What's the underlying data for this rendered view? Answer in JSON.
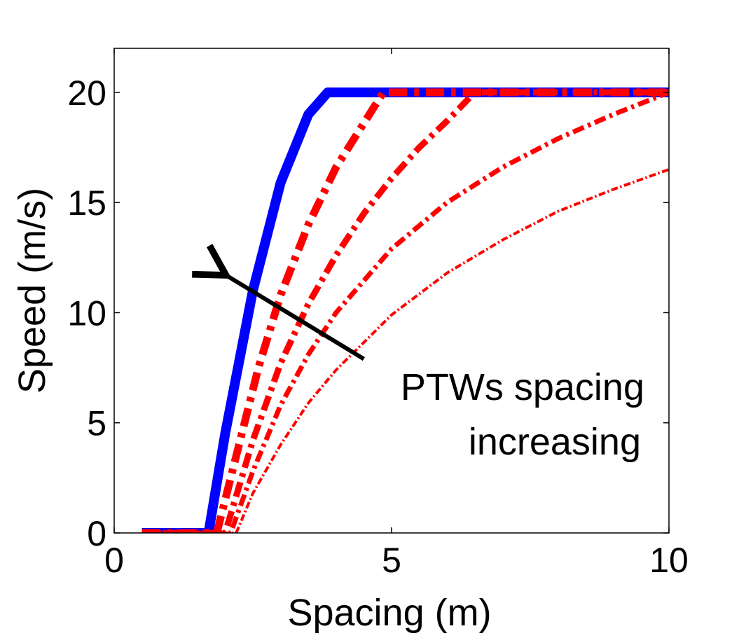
{
  "chart_data": {
    "type": "line",
    "title": "",
    "xlabel": "Spacing (m)",
    "ylabel": "Speed (m/s)",
    "xlim": [
      0,
      10
    ],
    "ylim": [
      0,
      22
    ],
    "xticks": [
      0,
      5,
      10
    ],
    "yticks": [
      0,
      5,
      10,
      15,
      20
    ],
    "grid": false,
    "colors": {
      "blue": "#0000ff",
      "red": "#ff0000",
      "axis": "#000000"
    },
    "series": [
      {
        "name": "blue-reference",
        "color": "#0000ff",
        "style": "solid",
        "x": [
          0.5,
          1.7,
          2.0,
          2.5,
          3.0,
          3.5,
          3.85,
          10.0
        ],
        "y": [
          0,
          0,
          4.5,
          11.0,
          15.9,
          19.0,
          20.0,
          20.0
        ]
      },
      {
        "name": "red-1",
        "color": "#ff0000",
        "style": "dashdot",
        "x": [
          0.5,
          1.85,
          2.2,
          2.6,
          3.0,
          3.5,
          4.0,
          4.5,
          4.85,
          10.0
        ],
        "y": [
          0,
          0,
          3.5,
          7.5,
          10.8,
          14.0,
          16.6,
          18.6,
          20.0,
          20.0
        ]
      },
      {
        "name": "red-2",
        "color": "#ff0000",
        "style": "dashdot",
        "x": [
          0.5,
          2.0,
          2.5,
          3.0,
          3.5,
          4.0,
          4.5,
          5.0,
          5.5,
          6.0,
          6.5,
          10.0
        ],
        "y": [
          0,
          0,
          4.2,
          7.7,
          10.4,
          12.6,
          14.5,
          16.1,
          17.5,
          18.7,
          20.0,
          20.0
        ]
      },
      {
        "name": "red-3",
        "color": "#ff0000",
        "style": "dashdot",
        "x": [
          0.5,
          2.1,
          2.5,
          3.0,
          3.5,
          4.0,
          5.0,
          6.0,
          7.0,
          8.0,
          9.0,
          10.0
        ],
        "y": [
          0,
          0,
          2.8,
          5.8,
          8.1,
          10.0,
          12.9,
          15.0,
          16.6,
          17.9,
          19.0,
          20.0
        ]
      },
      {
        "name": "red-4",
        "color": "#ff0000",
        "style": "dashdot",
        "x": [
          0.5,
          2.2,
          2.5,
          3.0,
          3.5,
          4.0,
          5.0,
          6.0,
          7.0,
          8.0,
          9.0,
          10.0
        ],
        "y": [
          0,
          0,
          1.8,
          4.0,
          5.9,
          7.4,
          9.9,
          11.8,
          13.3,
          14.6,
          15.6,
          16.5
        ]
      }
    ],
    "annotations": [
      {
        "name": "arrow",
        "from": [
          4.5,
          7.9
        ],
        "to": [
          1.95,
          11.8
        ]
      },
      {
        "name": "text",
        "lines": [
          "PTWs spacing",
          "increasing"
        ]
      }
    ]
  }
}
